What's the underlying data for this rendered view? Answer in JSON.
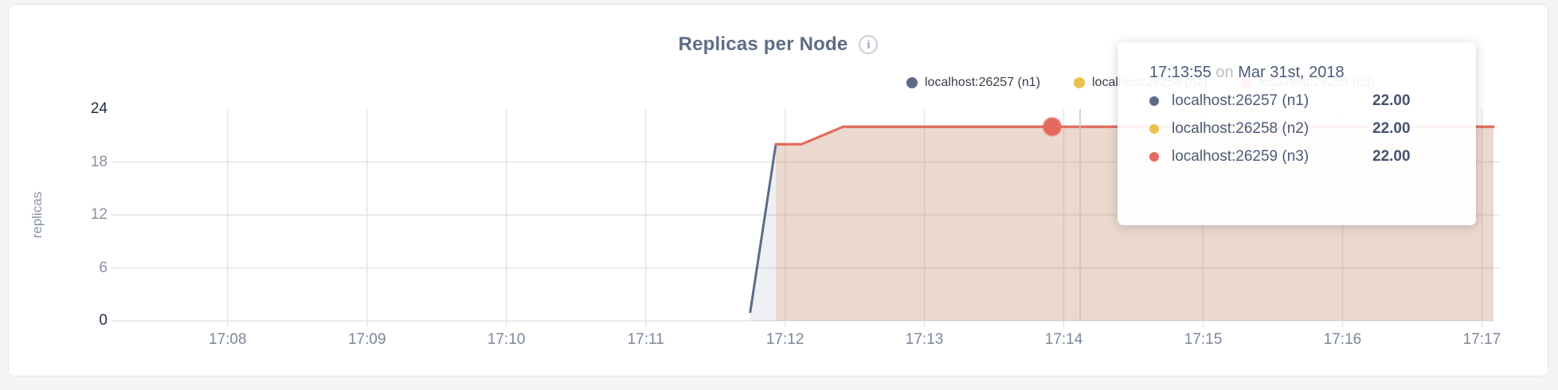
{
  "header": {
    "title": "Replicas per Node",
    "info_icon": "i"
  },
  "legend": {
    "items": [
      {
        "label": "localhost:26257 (n1)",
        "color": "#5c6b87"
      },
      {
        "label": "localhost:26258 (n2)",
        "color": "#eac24e"
      },
      {
        "label": "localhost:26259 (n3)",
        "color": "#e6695e"
      }
    ]
  },
  "tooltip": {
    "time": "17:13:55",
    "conjunction": "on",
    "date": "Mar 31st, 2018",
    "rows": [
      {
        "label": "localhost:26257 (n1)",
        "value": "22.00",
        "color": "#5c6b87"
      },
      {
        "label": "localhost:26258 (n2)",
        "value": "22.00",
        "color": "#eac24e"
      },
      {
        "label": "localhost:26259 (n3)",
        "value": "22.00",
        "color": "#e6695e"
      }
    ]
  },
  "chart_data": {
    "type": "area",
    "title": "Replicas per Node",
    "xlabel": "",
    "ylabel": "replicas",
    "grid": true,
    "legend_position": "top-right",
    "ylim": [
      0,
      24
    ],
    "y_ticks": [
      0,
      6,
      12,
      18,
      24
    ],
    "y_ticks_emphasized": [
      0,
      24
    ],
    "x_ticks": [
      {
        "label": "17:08",
        "t": 480
      },
      {
        "label": "17:09",
        "t": 540
      },
      {
        "label": "17:10",
        "t": 600
      },
      {
        "label": "17:11",
        "t": 660
      },
      {
        "label": "17:12",
        "t": 720
      },
      {
        "label": "17:13",
        "t": 780
      },
      {
        "label": "17:14",
        "t": 840
      },
      {
        "label": "17:15",
        "t": 900
      },
      {
        "label": "17:16",
        "t": 960
      },
      {
        "label": "17:17",
        "t": 1020
      }
    ],
    "x_domain_seconds_after_1700": [
      430,
      1025
    ],
    "series": [
      {
        "name": "localhost:26257 (n1)",
        "color": "#5c6b87",
        "fill_opacity": 0.1,
        "points": [
          [
            705,
            1
          ],
          [
            716,
            20
          ],
          [
            727,
            20
          ],
          [
            745,
            22
          ],
          [
            835,
            22
          ],
          [
            1025,
            22
          ]
        ]
      },
      {
        "name": "localhost:26258 (n2)",
        "color": "#eac24e",
        "fill_opacity": 0.1,
        "points": [
          [
            716,
            20
          ],
          [
            727,
            20
          ],
          [
            745,
            22
          ],
          [
            835,
            22
          ],
          [
            1025,
            22
          ]
        ]
      },
      {
        "name": "localhost:26259 (n3)",
        "color": "#e6695e",
        "fill_opacity": 0.14,
        "points": [
          [
            716,
            20
          ],
          [
            727,
            20
          ],
          [
            745,
            22
          ],
          [
            835,
            22
          ],
          [
            1025,
            22
          ]
        ]
      }
    ],
    "hover": {
      "time_label": "17:13:55",
      "t": 835,
      "value": 22,
      "highlight_series": "localhost:26259 (n3)",
      "crosshair_t": 847,
      "values": {
        "localhost:26257 (n1)": 22.0,
        "localhost:26258 (n2)": 22.0,
        "localhost:26259 (n3)": 22.0
      }
    },
    "colors": {
      "gridline": "#e4e4e6",
      "crosshair": "#c6c6c6",
      "axis_baseline": "#e6e6e8"
    }
  }
}
